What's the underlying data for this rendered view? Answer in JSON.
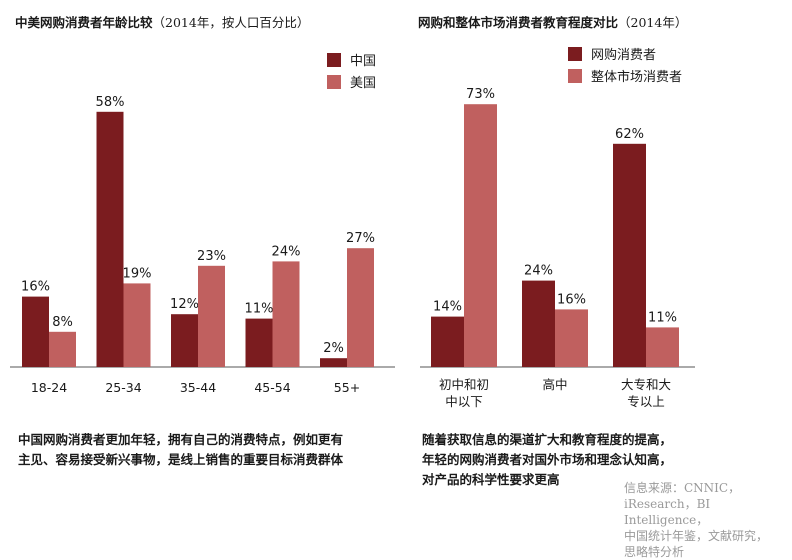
{
  "colors": {
    "dark": "#7b1c1f",
    "light": "#c0605f",
    "axis": "#555555",
    "text": "#1a1a1a"
  },
  "left_title": {
    "main": "中美网购消费者年龄比较",
    "sub": "（2014年，按人口百分比）"
  },
  "right_title": {
    "main": "网购和整体市场消费者教育程度对比",
    "sub": "（2014年）"
  },
  "left_caption": [
    "中国网购消费者更加年轻，拥有自己的消费特点，例如更有",
    "主见、容易接受新兴事物，是线上销售的重要目标消费群体"
  ],
  "right_caption": [
    "随着获取信息的渠道扩大和教育程度的提高，",
    "年轻的网购消费者对国外市场和理念认知高，",
    "对产品的科学性要求更高"
  ],
  "source": [
    "信息来源：CNNIC，",
    "iResearch，BI Intelligence，",
    "中国统计年鉴，文献研究，",
    "思略特分析"
  ],
  "chart_data": [
    {
      "type": "bar",
      "title": "中美网购消费者年龄比较（2014年，按人口百分比）",
      "categories": [
        "18-24",
        "25-34",
        "35-44",
        "45-54",
        "55+"
      ],
      "series": [
        {
          "name": "中国",
          "values": [
            16,
            58,
            12,
            11,
            2
          ],
          "color": "#7b1c1f"
        },
        {
          "name": "美国",
          "values": [
            8,
            19,
            23,
            24,
            27
          ],
          "color": "#c0605f"
        }
      ],
      "value_suffix": "%",
      "ylim": [
        0,
        73
      ],
      "legend": "top-right",
      "grid": false
    },
    {
      "type": "bar",
      "title": "网购和整体市场消费者教育程度对比（2014年）",
      "categories": [
        [
          "初中和初",
          "中以下"
        ],
        [
          "高中"
        ],
        [
          "大专和大",
          "专以上"
        ]
      ],
      "series": [
        {
          "name": "网购消费者",
          "values": [
            14,
            24,
            62
          ],
          "color": "#7b1c1f"
        },
        {
          "name": "整体市场消费者",
          "values": [
            73,
            16,
            11
          ],
          "color": "#c0605f"
        }
      ],
      "value_suffix": "%",
      "ylim": [
        0,
        73
      ],
      "legend": "top-left",
      "grid": false
    }
  ]
}
